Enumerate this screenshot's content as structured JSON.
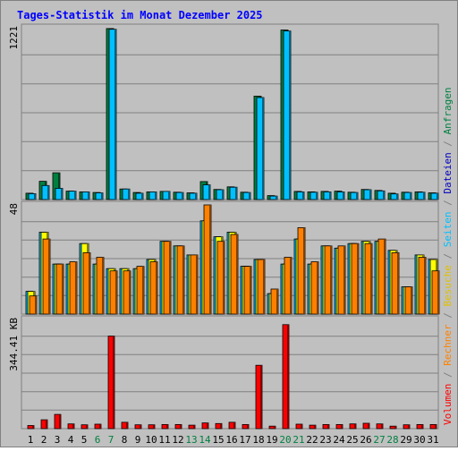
{
  "title": "Tages-Statistik im Monat Dezember 2025",
  "colors": {
    "title": "#0000ff",
    "anfragen": "#008040",
    "dateien": "#00c0ff",
    "seiten": "#00c0ff",
    "besuche": "#ffff00",
    "rechner": "#ff8000",
    "volumen": "#ff0000",
    "weekend_label": "#008040"
  },
  "chart_data": [
    {
      "type": "bar",
      "panel": "top",
      "max_label": "1221",
      "ylim": [
        0,
        1221
      ],
      "grid": true,
      "series": [
        {
          "name": "Anfragen",
          "values": [
            45,
            130,
            190,
            60,
            55,
            50,
            1215,
            75,
            50,
            55,
            58,
            52,
            48,
            128,
            72,
            90,
            52,
            735,
            28,
            1205,
            58,
            55,
            58,
            60,
            52,
            72,
            65,
            45,
            52,
            55,
            48
          ]
        },
        {
          "name": "Dateien",
          "values": [
            42,
            100,
            80,
            60,
            55,
            48,
            1210,
            75,
            45,
            55,
            58,
            50,
            45,
            105,
            70,
            88,
            50,
            725,
            25,
            1198,
            55,
            52,
            55,
            55,
            50,
            70,
            62,
            40,
            50,
            52,
            45
          ]
        }
      ]
    },
    {
      "type": "bar",
      "panel": "middle",
      "max_label": "48",
      "ylim": [
        0,
        48
      ],
      "grid": true,
      "series": [
        {
          "name": "Seiten",
          "values": [
            10,
            36,
            22,
            22,
            31,
            22,
            20,
            20,
            20,
            24,
            32,
            30,
            26,
            41,
            34,
            36,
            21,
            24,
            9,
            22,
            33,
            22,
            30,
            29,
            31,
            32,
            32,
            28,
            12,
            26,
            24
          ]
        },
        {
          "name": "Besuche",
          "values": [
            10,
            36,
            22,
            22,
            31,
            22,
            20,
            20,
            20,
            24,
            32,
            30,
            26,
            41,
            34,
            36,
            21,
            24,
            9,
            22,
            33,
            22,
            30,
            29,
            31,
            32,
            32,
            28,
            12,
            26,
            24
          ]
        },
        {
          "name": "Rechner",
          "values": [
            8,
            33,
            22,
            23,
            27,
            25,
            19,
            19,
            21,
            23,
            32,
            30,
            26,
            48,
            32,
            35,
            21,
            24,
            11,
            25,
            38,
            23,
            30,
            30,
            31,
            31,
            33,
            27,
            12,
            25,
            19
          ]
        }
      ]
    },
    {
      "type": "bar",
      "panel": "bottom",
      "max_label": "344.41 KB",
      "ylim": [
        0,
        344.41
      ],
      "grid": true,
      "series": [
        {
          "name": "Volumen",
          "values": [
            10,
            28,
            45,
            15,
            12,
            14,
            292,
            20,
            12,
            12,
            13,
            13,
            11,
            18,
            16,
            20,
            13,
            200,
            8,
            328,
            14,
            11,
            13,
            13,
            15,
            17,
            15,
            8,
            12,
            13,
            13
          ]
        }
      ]
    }
  ],
  "days": [
    "1",
    "2",
    "3",
    "4",
    "5",
    "6",
    "7",
    "8",
    "9",
    "10",
    "11",
    "12",
    "13",
    "14",
    "15",
    "16",
    "17",
    "18",
    "19",
    "20",
    "21",
    "22",
    "23",
    "24",
    "25",
    "26",
    "27",
    "28",
    "29",
    "30",
    "31"
  ],
  "weekend_days": [
    "6",
    "7",
    "13",
    "14",
    "20",
    "21",
    "27",
    "28"
  ],
  "legend": {
    "volumen": "Volumen",
    "rechner": "Rechner",
    "besuche": "Besuche",
    "seiten": "Seiten",
    "dateien": "Dateien",
    "anfragen": "Anfragen",
    "separator": " / "
  }
}
